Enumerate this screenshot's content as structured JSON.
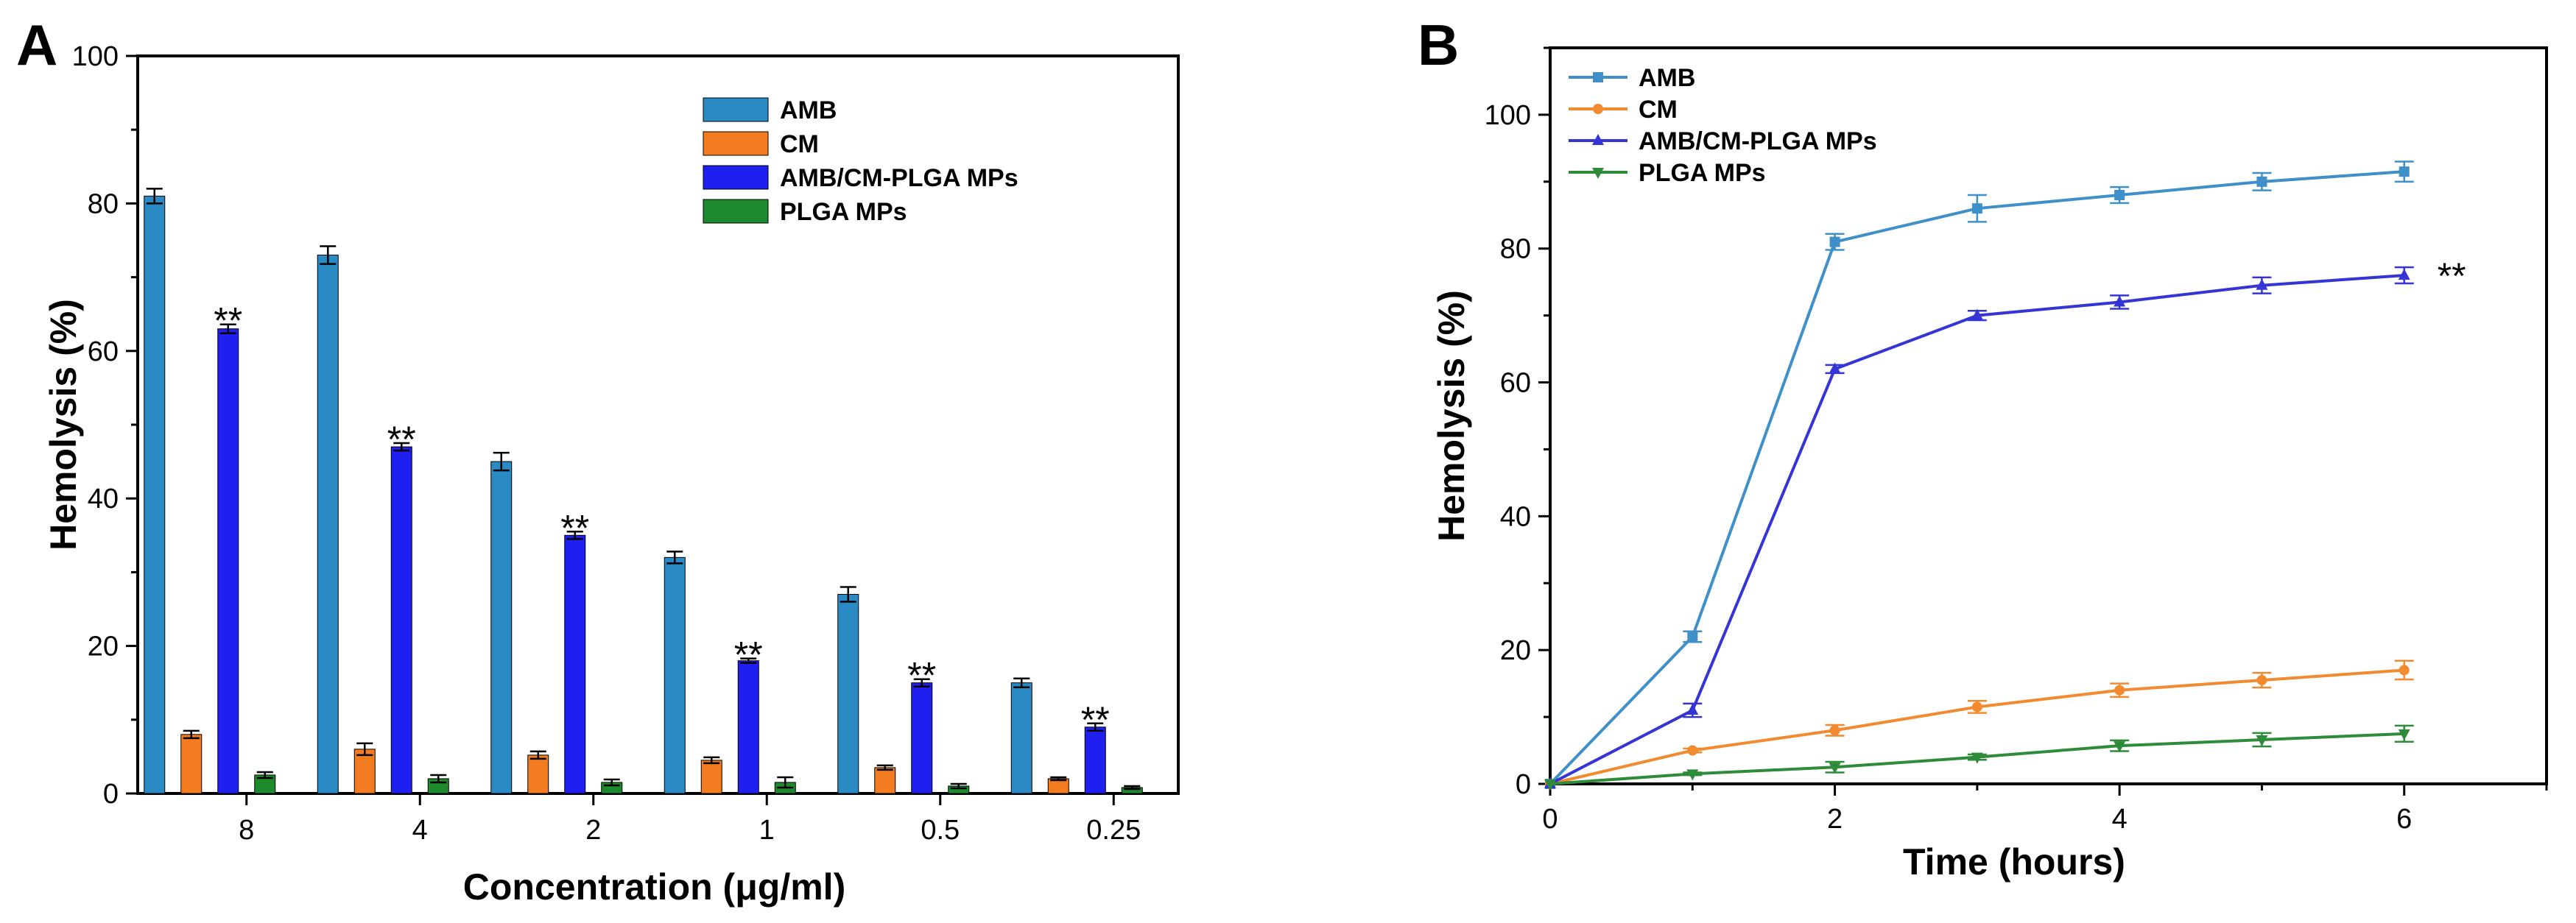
{
  "panels": {
    "A": {
      "letter": "A"
    },
    "B": {
      "letter": "B"
    }
  },
  "colors": {
    "AMB": "#2a8ac4",
    "CM": "#f47c20",
    "AMB/CM-PLGA MPs": "#1f1ff0",
    "PLGA MPs": "#1e8a2e",
    "LineAMB": "#3f8fc8",
    "LineCM": "#f28a30",
    "LineBlue": "#3535d6",
    "LineGreen": "#2e8b3a"
  },
  "chart_data": [
    {
      "type": "bar",
      "title": "",
      "xlabel": "Concentration (μg/ml)",
      "ylabel": "Hemolysis (%)",
      "ylim": [
        0,
        100
      ],
      "yticks": [
        0,
        20,
        40,
        60,
        80,
        100
      ],
      "categories": [
        "8",
        "4",
        "2",
        "1",
        "0.5",
        "0.25"
      ],
      "series": [
        {
          "name": "AMB",
          "values": [
            81,
            73,
            45,
            32,
            27,
            15
          ],
          "errors": [
            1,
            1.2,
            1.2,
            0.8,
            1,
            0.6
          ]
        },
        {
          "name": "CM",
          "values": [
            8,
            6,
            5.2,
            4.5,
            3.5,
            2
          ],
          "errors": [
            0.5,
            0.8,
            0.5,
            0.4,
            0.3,
            0.2
          ]
        },
        {
          "name": "AMB/CM-PLGA MPs",
          "values": [
            63,
            47,
            35,
            18,
            15,
            9
          ],
          "errors": [
            0.6,
            0.5,
            0.5,
            0.3,
            0.5,
            0.5
          ]
        },
        {
          "name": "PLGA MPs",
          "values": [
            2.5,
            2,
            1.5,
            1.5,
            1,
            0.8
          ],
          "errors": [
            0.4,
            0.5,
            0.4,
            0.7,
            0.3,
            0.2
          ]
        }
      ],
      "annotations": [
        {
          "text": "**",
          "category": "8",
          "series": "AMB/CM-PLGA MPs"
        },
        {
          "text": "**",
          "category": "4",
          "series": "AMB/CM-PLGA MPs"
        },
        {
          "text": "**",
          "category": "2",
          "series": "AMB/CM-PLGA MPs"
        },
        {
          "text": "**",
          "category": "1",
          "series": "AMB/CM-PLGA MPs"
        },
        {
          "text": "**",
          "category": "0.5",
          "series": "AMB/CM-PLGA MPs"
        },
        {
          "text": "**",
          "category": "0.25",
          "series": "AMB/CM-PLGA MPs"
        }
      ],
      "legend": "top-right",
      "grid": false
    },
    {
      "type": "line",
      "title": "",
      "xlabel": "Time (hours)",
      "ylabel": "Hemolysis (%)",
      "xlim": [
        0,
        7
      ],
      "ylim": [
        0,
        110
      ],
      "xticks": [
        0,
        2,
        4,
        6
      ],
      "yticks": [
        0,
        20,
        40,
        60,
        80,
        100
      ],
      "x": [
        0,
        1,
        2,
        3,
        4,
        5,
        6
      ],
      "series": [
        {
          "name": "AMB",
          "marker": "square",
          "values": [
            0,
            22,
            81,
            86,
            88,
            90,
            91.5
          ],
          "errors": [
            0,
            0.8,
            1.2,
            2,
            1.2,
            1.3,
            1.5
          ]
        },
        {
          "name": "CM",
          "marker": "circle",
          "values": [
            0,
            5,
            8,
            11.5,
            14,
            15.5,
            17
          ],
          "errors": [
            0,
            0.3,
            0.8,
            0.9,
            1,
            1.1,
            1.4
          ]
        },
        {
          "name": "AMB/CM-PLGA MPs",
          "marker": "triangle-up",
          "values": [
            0,
            11,
            62,
            70,
            72,
            74.5,
            76
          ],
          "errors": [
            0,
            1,
            0.6,
            0.7,
            1,
            1.2,
            1.2
          ]
        },
        {
          "name": "PLGA MPs",
          "marker": "triangle-down",
          "values": [
            0,
            1.5,
            2.5,
            4,
            5.7,
            6.6,
            7.5
          ],
          "errors": [
            0,
            0.2,
            0.8,
            0.4,
            0.8,
            1,
            1.2
          ]
        }
      ],
      "annotations": [
        {
          "text": "**",
          "x": 6,
          "series": "AMB/CM-PLGA MPs"
        }
      ],
      "legend": "top-left",
      "grid": false
    }
  ]
}
